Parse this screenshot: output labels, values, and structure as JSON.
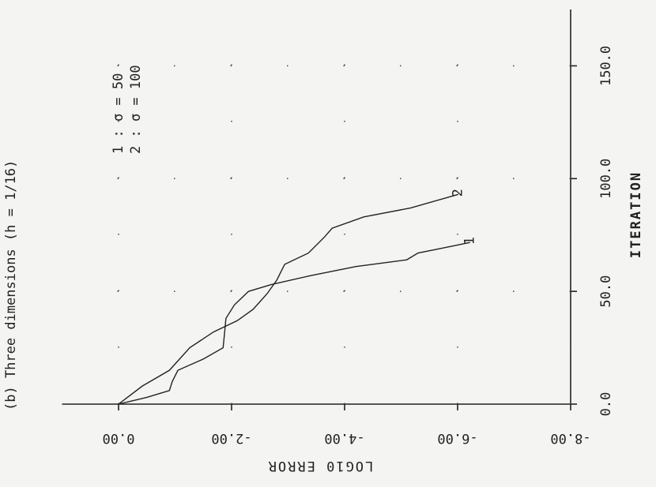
{
  "chart_data": {
    "type": "line",
    "title": "(b) Three dimensions (h = 1/16)",
    "xlabel": "ITERATION",
    "ylabel": "LOG10 ERROR",
    "series": [
      {
        "name": "1 : σ = 50",
        "end_label": "1",
        "color": "#222222",
        "x": [
          0,
          3,
          6,
          10,
          15,
          20,
          25,
          30,
          38,
          44,
          50,
          53,
          57,
          61,
          64,
          67,
          69,
          71.7
        ],
        "values": [
          0,
          -0.5,
          -0.9,
          -0.95,
          -1.05,
          -1.5,
          -1.85,
          -1.87,
          -1.9,
          -2.05,
          -2.3,
          -2.7,
          -3.4,
          -4.2,
          -5.1,
          -5.3,
          -5.7,
          -6.22
        ]
      },
      {
        "name": "2 : σ = 100",
        "end_label": "2",
        "color": "#222222",
        "x": [
          0,
          8,
          15,
          25,
          32,
          37,
          42,
          49,
          55,
          62,
          67,
          74,
          78,
          83,
          87,
          93
        ],
        "values": [
          0,
          -0.42,
          -0.9,
          -1.26,
          -1.68,
          -2.1,
          -2.38,
          -2.63,
          -2.8,
          -2.94,
          -3.36,
          -3.64,
          -3.78,
          -4.34,
          -5.17,
          -6.01
        ]
      }
    ],
    "xlim": [
      0,
      175
    ],
    "ylim": [
      1,
      -8
    ],
    "xticks": [
      {
        "value": 0,
        "label": "0.0"
      },
      {
        "value": 50,
        "label": "50.0"
      },
      {
        "value": 100,
        "label": "100.0"
      },
      {
        "value": 150,
        "label": "150.0"
      }
    ],
    "yticks": [
      {
        "value": 0,
        "label": "0.00"
      },
      {
        "value": -2,
        "label": "-2.00"
      },
      {
        "value": -4,
        "label": "-4.00"
      },
      {
        "value": -6,
        "label": "-6.00"
      },
      {
        "value": -8,
        "label": "-8.00"
      }
    ],
    "grid": true,
    "rotated": true
  }
}
